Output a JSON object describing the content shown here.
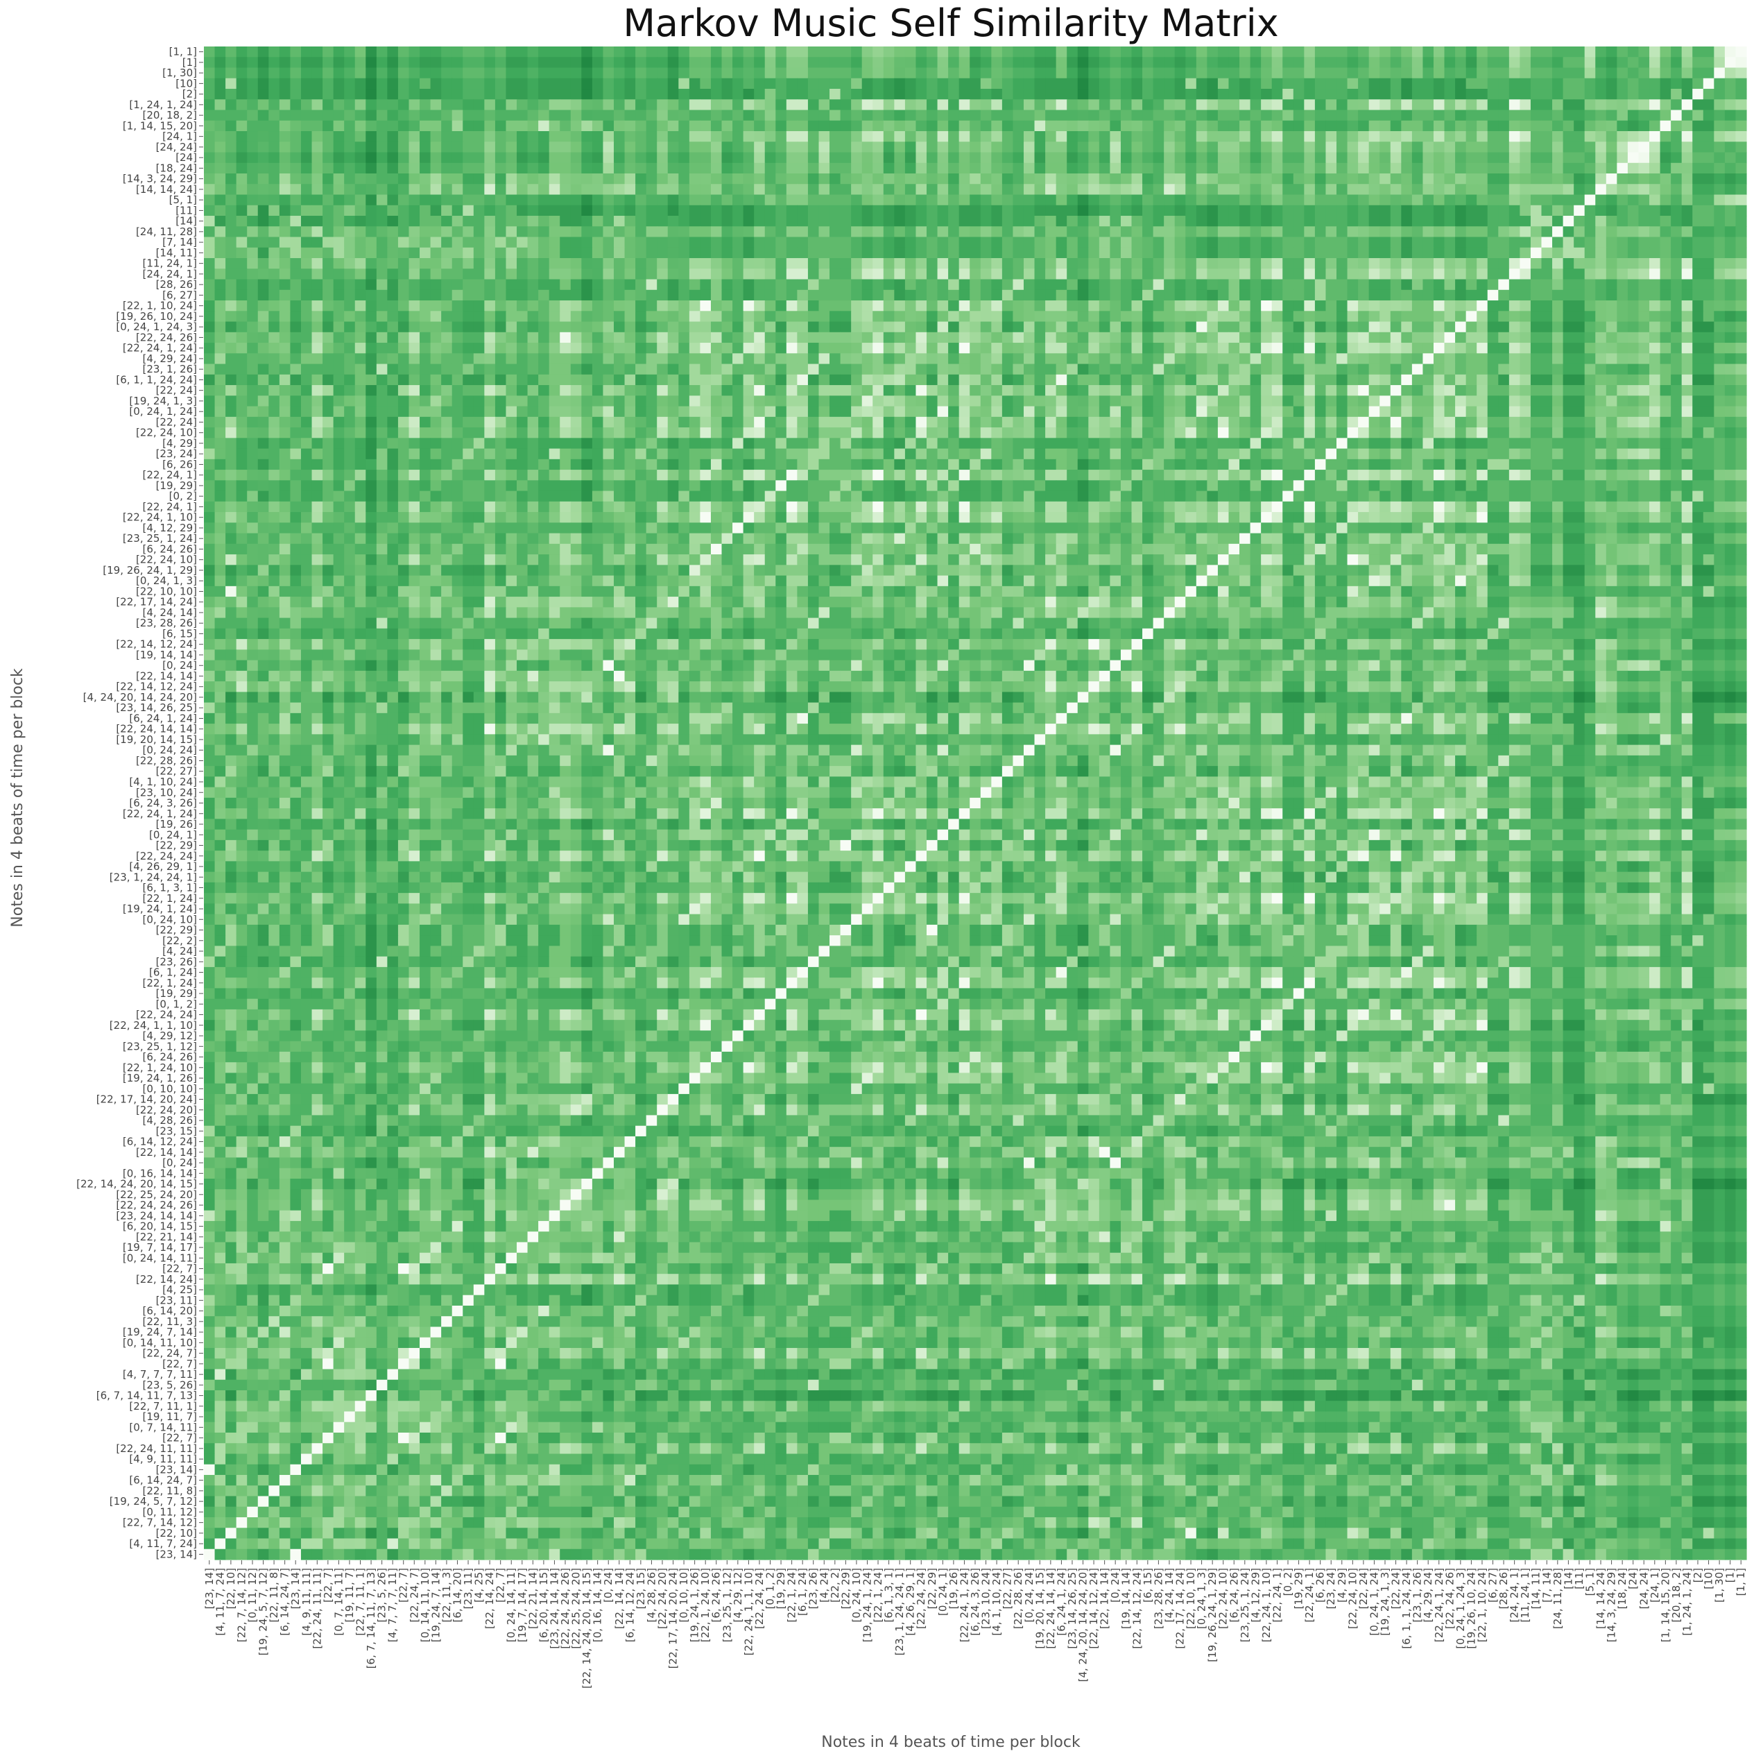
{
  "chart_data": {
    "type": "heatmap",
    "title": "Markov Music Self Similarity Matrix",
    "xlabel": "Notes in 4 beats of time per block",
    "ylabel": "Notes in 4 beats of time per block",
    "colormap": "Greens",
    "colors": {
      "low": "#f7fcf5",
      "mid": "#74c476",
      "high": "#00441b"
    },
    "grid": false,
    "legend": "none",
    "diagonal_value": 0,
    "value_range": [
      0,
      1
    ],
    "row_labels": [
      "[1, 1]",
      "[1]",
      "[1, 30]",
      "[10]",
      "[2]",
      "[1, 24, 1, 24]",
      "[20, 18, 2]",
      "[1, 14, 15, 20]",
      "[24, 1]",
      "[24, 24]",
      "[24]",
      "[18, 24]",
      "[14, 3, 24, 29]",
      "[14, 14, 24]",
      "[5, 1]",
      "[11]",
      "[14]",
      "[24, 11, 28]",
      "[7, 14]",
      "[14, 11]",
      "[11, 24, 1]",
      "[24, 24, 1]",
      "[28, 26]",
      "[6, 27]",
      "[22, 1, 10, 24]",
      "[19, 26, 10, 24]",
      "[0, 24, 1, 24, 3]",
      "[22, 24, 26]",
      "[22, 24, 1, 24]",
      "[4, 29, 24]",
      "[23, 1, 26]",
      "[6, 1, 1, 24, 24]",
      "[22, 24]",
      "[19, 24, 1, 3]",
      "[0, 24, 1, 24]",
      "[22, 24]",
      "[22, 24, 10]",
      "[4, 29]",
      "[23, 24]",
      "[6, 26]",
      "[22, 24, 1]",
      "[19, 29]",
      "[0, 2]",
      "[22, 24, 1]",
      "[22, 24, 1, 10]",
      "[4, 12, 29]",
      "[23, 25, 1, 24]",
      "[6, 24, 26]",
      "[22, 24, 10]",
      "[19, 26, 24, 1, 29]",
      "[0, 24, 1, 3]",
      "[22, 10, 10]",
      "[22, 17, 14, 24]",
      "[4, 24, 14]",
      "[23, 28, 26]",
      "[6, 15]",
      "[22, 14, 12, 24]",
      "[19, 14, 14]",
      "[0, 24]",
      "[22, 14, 14]",
      "[22, 14, 12, 24]",
      "[4, 24, 20, 14, 24, 20]",
      "[23, 14, 26, 25]",
      "[6, 24, 1, 24]",
      "[22, 24, 14, 14]",
      "[19, 20, 14, 15]",
      "[0, 24, 24]",
      "[22, 28, 26]",
      "[22, 27]",
      "[4, 1, 10, 24]",
      "[23, 10, 24]",
      "[6, 24, 3, 26]",
      "[22, 24, 1, 24]",
      "[19, 26]",
      "[0, 24, 1]",
      "[22, 29]",
      "[22, 24, 24]",
      "[4, 26, 29, 1]",
      "[23, 1, 24, 24, 1]",
      "[6, 1, 3, 1]",
      "[22, 1, 24]",
      "[19, 24, 1, 24]",
      "[0, 24, 10]",
      "[22, 29]",
      "[22, 2]",
      "[4, 24]",
      "[23, 26]",
      "[6, 1, 24]",
      "[22, 1, 24]",
      "[19, 29]",
      "[0, 1, 2]",
      "[22, 24, 24]",
      "[22, 24, 1, 1, 10]",
      "[4, 29, 12]",
      "[23, 25, 1, 12]",
      "[6, 24, 26]",
      "[22, 1, 24, 10]",
      "[19, 24, 1, 26]",
      "[0, 10, 10]",
      "[22, 17, 14, 20, 24]",
      "[22, 24, 20]",
      "[4, 28, 26]",
      "[23, 15]",
      "[6, 14, 12, 24]",
      "[22, 14, 14]",
      "[0, 24]",
      "[0, 16, 14, 14]",
      "[22, 14, 24, 20, 14, 15]",
      "[22, 25, 24, 20]",
      "[22, 24, 24, 26]",
      "[23, 24, 14, 14]",
      "[6, 20, 14, 15]",
      "[22, 21, 14]",
      "[19, 7, 14, 17]",
      "[0, 24, 14, 11]",
      "[22, 7]",
      "[22, 14, 24]",
      "[4, 25]",
      "[23, 11]",
      "[6, 14, 20]",
      "[22, 11, 3]",
      "[19, 24, 7, 14]",
      "[0, 14, 11, 10]",
      "[22, 24, 7]",
      "[22, 7]",
      "[4, 7, 7, 7, 11]",
      "[23, 5, 26]",
      "[6, 7, 14, 11, 7, 13]",
      "[22, 7, 11, 1]",
      "[19, 11, 7]",
      "[0, 7, 14, 11]",
      "[22, 7]",
      "[22, 24, 11, 11]",
      "[4, 9, 11, 11]",
      "[23, 14]",
      "[6, 14, 24, 7]",
      "[22, 11, 8]",
      "[19, 24, 5, 7, 12]",
      "[0, 11, 12]",
      "[22, 7, 14, 12]",
      "[22, 10]",
      "[4, 11, 7, 24]",
      "[23, 14]"
    ],
    "col_labels": [
      "[23, 14]",
      "[4, 11, 7, 24]",
      "[22, 10]",
      "[22, 7, 14, 12]",
      "[0, 11, 12]",
      "[19, 24, 5, 7, 12]",
      "[22, 11, 8]",
      "[6, 14, 24, 7]",
      "[23, 14]",
      "[4, 9, 11, 11]",
      "[22, 24, 11, 11]",
      "[22, 7]",
      "[0, 7, 14, 11]",
      "[19, 11, 7]",
      "[22, 7, 11, 1]",
      "[6, 7, 14, 11, 7, 13]",
      "[23, 5, 26]",
      "[4, 7, 7, 7, 11]",
      "[22, 7]",
      "[22, 24, 7]",
      "[0, 14, 11, 10]",
      "[19, 24, 7, 14]",
      "[22, 11, 3]",
      "[6, 14, 20]",
      "[23, 11]",
      "[4, 25]",
      "[22, 14, 24]",
      "[22, 7]",
      "[0, 24, 14, 11]",
      "[19, 7, 14, 17]",
      "[22, 21, 14]",
      "[6, 20, 14, 15]",
      "[23, 24, 14, 14]",
      "[22, 24, 24, 26]",
      "[22, 25, 24, 20]",
      "[22, 14, 24, 20, 14, 15]",
      "[0, 16, 14, 14]",
      "[0, 24]",
      "[22, 14, 14]",
      "[6, 14, 12, 24]",
      "[23, 15]",
      "[4, 28, 26]",
      "[22, 24, 20]",
      "[22, 17, 14, 20, 24]",
      "[0, 10, 10]",
      "[19, 24, 1, 26]",
      "[22, 1, 24, 10]",
      "[6, 24, 26]",
      "[23, 25, 1, 12]",
      "[4, 29, 12]",
      "[22, 24, 1, 1, 10]",
      "[22, 24, 24]",
      "[0, 1, 2]",
      "[19, 29]",
      "[22, 1, 24]",
      "[6, 1, 24]",
      "[23, 26]",
      "[4, 24]",
      "[22, 2]",
      "[22, 29]",
      "[0, 24, 10]",
      "[19, 24, 1, 24]",
      "[22, 1, 24]",
      "[6, 1, 3, 1]",
      "[23, 1, 24, 24, 1]",
      "[4, 26, 29, 1]",
      "[22, 24, 24]",
      "[22, 29]",
      "[0, 24, 1]",
      "[19, 26]",
      "[22, 24, 1, 24]",
      "[6, 24, 3, 26]",
      "[23, 10, 24]",
      "[4, 1, 10, 24]",
      "[22, 27]",
      "[22, 28, 26]",
      "[0, 24, 24]",
      "[19, 20, 14, 15]",
      "[22, 24, 14, 14]",
      "[6, 24, 1, 24]",
      "[23, 14, 26, 25]",
      "[4, 24, 20, 14, 24, 20]",
      "[22, 14, 12, 24]",
      "[22, 14, 14]",
      "[0, 24]",
      "[19, 14, 14]",
      "[22, 14, 12, 24]",
      "[6, 15]",
      "[23, 28, 26]",
      "[4, 24, 14]",
      "[22, 17, 14, 24]",
      "[22, 10, 10]",
      "[0, 24, 1, 3]",
      "[19, 26, 24, 1, 29]",
      "[22, 24, 10]",
      "[6, 24, 26]",
      "[23, 25, 1, 24]",
      "[4, 12, 29]",
      "[22, 24, 1, 10]",
      "[22, 24, 1]",
      "[0, 2]",
      "[19, 29]",
      "[22, 24, 1]",
      "[6, 26]",
      "[23, 24]",
      "[4, 29]",
      "[22, 24, 10]",
      "[22, 24]",
      "[0, 24, 1, 24]",
      "[19, 24, 1, 3]",
      "[22, 24]",
      "[6, 1, 1, 24, 24]",
      "[23, 1, 26]",
      "[4, 29, 24]",
      "[22, 24, 1, 24]",
      "[22, 24, 26]",
      "[0, 24, 1, 24, 3]",
      "[19, 26, 10, 24]",
      "[22, 1, 10, 24]",
      "[6, 27]",
      "[28, 26]",
      "[24, 24, 1]",
      "[11, 24, 1]",
      "[14, 11]",
      "[7, 14]",
      "[24, 11, 28]",
      "[14]",
      "[11]",
      "[5, 1]",
      "[14, 14, 24]",
      "[14, 3, 24, 29]",
      "[18, 24]",
      "[24]",
      "[24, 24]",
      "[24, 1]",
      "[1, 14, 15, 20]",
      "[20, 18, 2]",
      "[1, 24, 1, 24]",
      "[2]",
      "[10]",
      "[1, 30]",
      "[1]",
      "[1, 1]"
    ]
  }
}
